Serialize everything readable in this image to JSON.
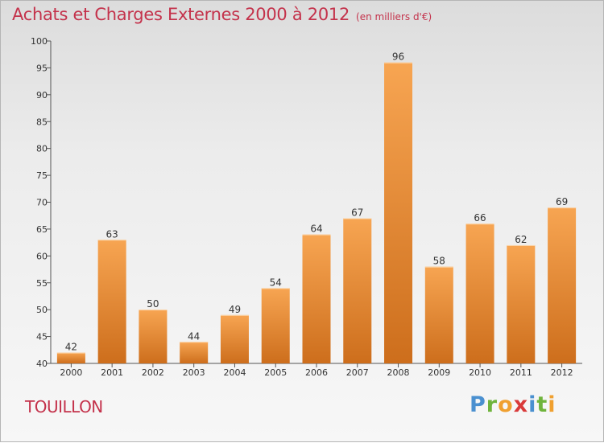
{
  "header": {
    "title": "Achats et Charges Externes 2000 à 2012",
    "unit": "(en milliers d'€)"
  },
  "footer": {
    "town": "TOUILLON",
    "logo": [
      "P",
      "r",
      "o",
      "x",
      "i",
      "t",
      "i"
    ]
  },
  "colors": {
    "title": "#c4324b",
    "bar_top": "#f7a552",
    "bar_bottom": "#cd6e1c"
  },
  "chart_data": {
    "type": "bar",
    "title": "Achats et Charges Externes 2000 à 2012",
    "subtitle": "(en milliers d'€)",
    "categories": [
      "2000",
      "2001",
      "2002",
      "2003",
      "2004",
      "2005",
      "2006",
      "2007",
      "2008",
      "2009",
      "2010",
      "2011",
      "2012"
    ],
    "values": [
      42,
      63,
      50,
      44,
      49,
      54,
      64,
      67,
      96,
      58,
      66,
      62,
      69
    ],
    "ylim": [
      40,
      100
    ],
    "yticks": [
      40,
      45,
      50,
      55,
      60,
      65,
      70,
      75,
      80,
      85,
      90,
      95,
      100
    ],
    "grid": false,
    "legend": "none"
  }
}
